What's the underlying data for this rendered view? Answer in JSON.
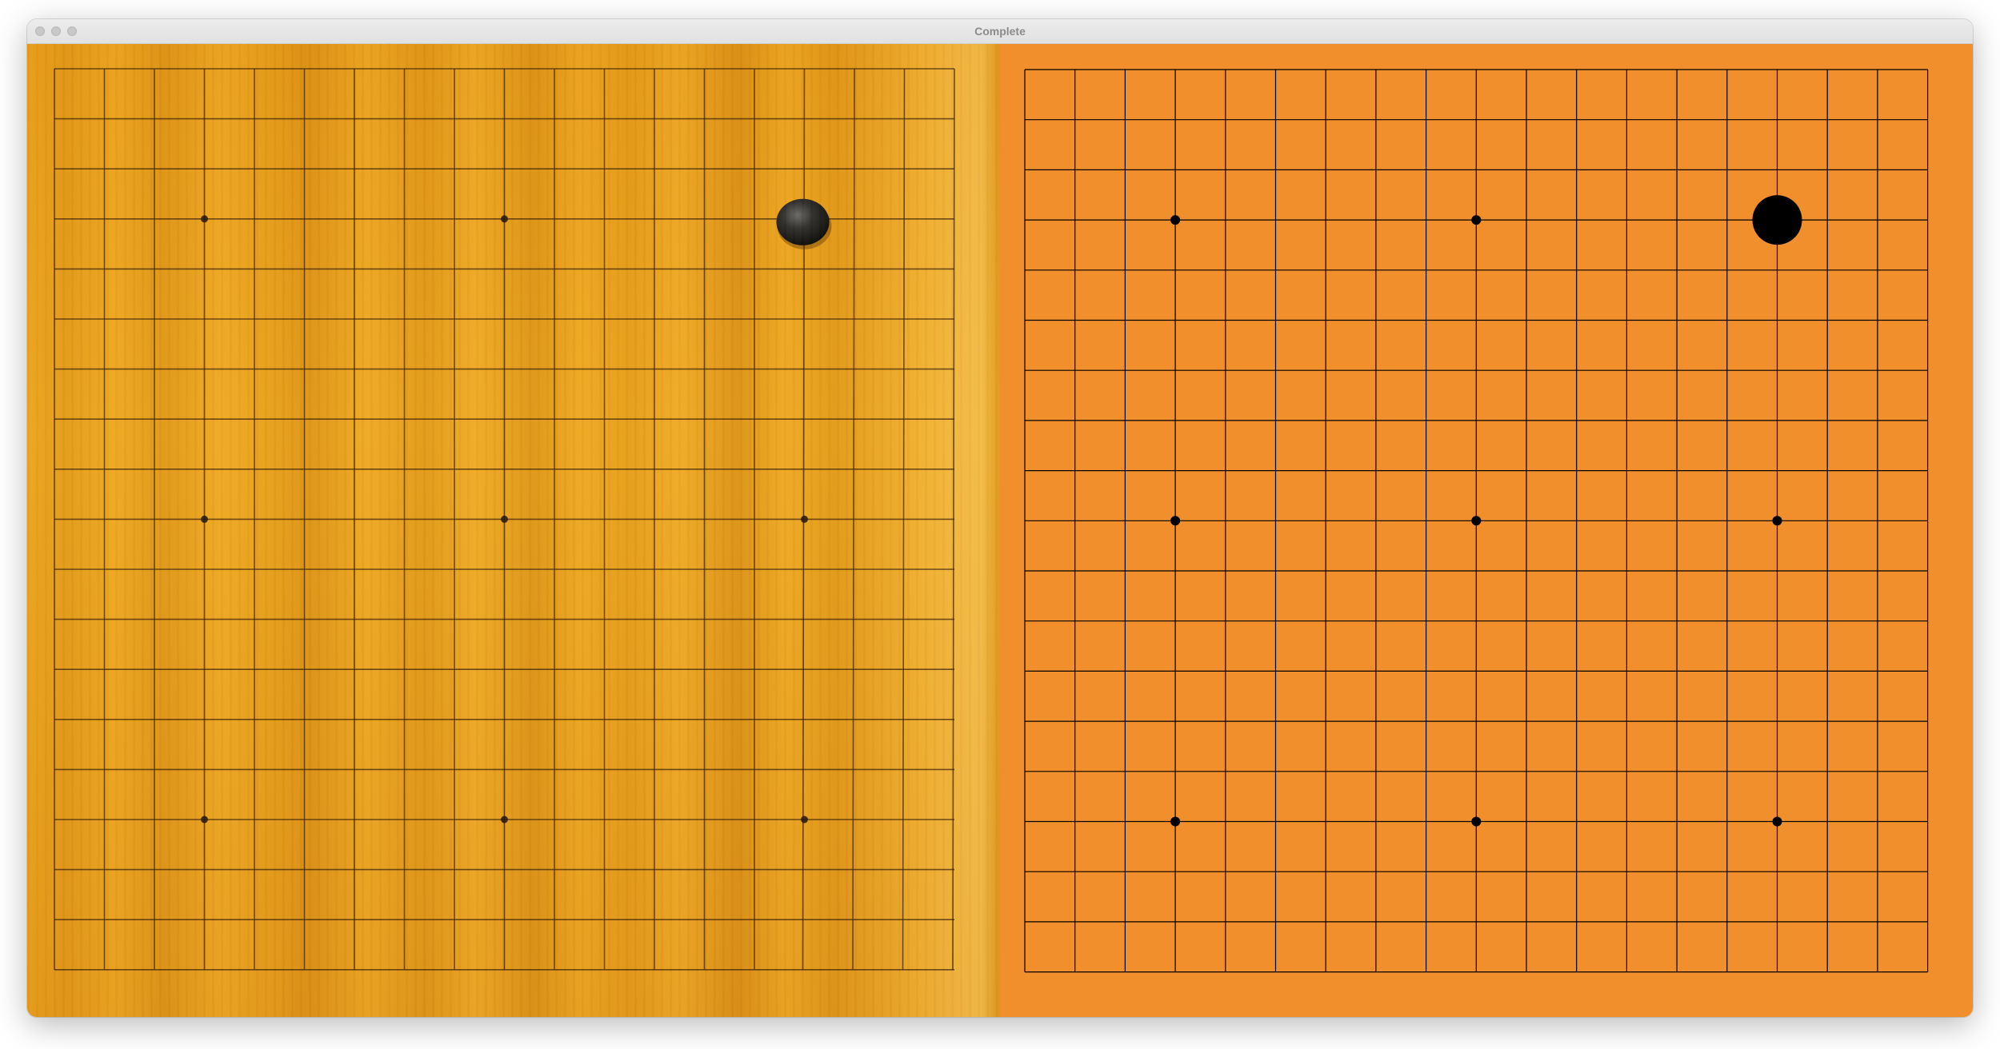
{
  "window": {
    "title": "Complete"
  },
  "board": {
    "size": 19,
    "star_points": [
      [
        3,
        3
      ],
      [
        3,
        9
      ],
      [
        3,
        15
      ],
      [
        9,
        3
      ],
      [
        9,
        9
      ],
      [
        9,
        15
      ],
      [
        15,
        3
      ],
      [
        15,
        9
      ],
      [
        15,
        15
      ]
    ],
    "stones": [
      {
        "color": "black",
        "row": 3,
        "col": 15
      }
    ]
  },
  "colors": {
    "diagram_background": "#f28f2d",
    "grid_line": "#000000",
    "photo_wood": "#e89c18",
    "stone_black": "#000000"
  }
}
